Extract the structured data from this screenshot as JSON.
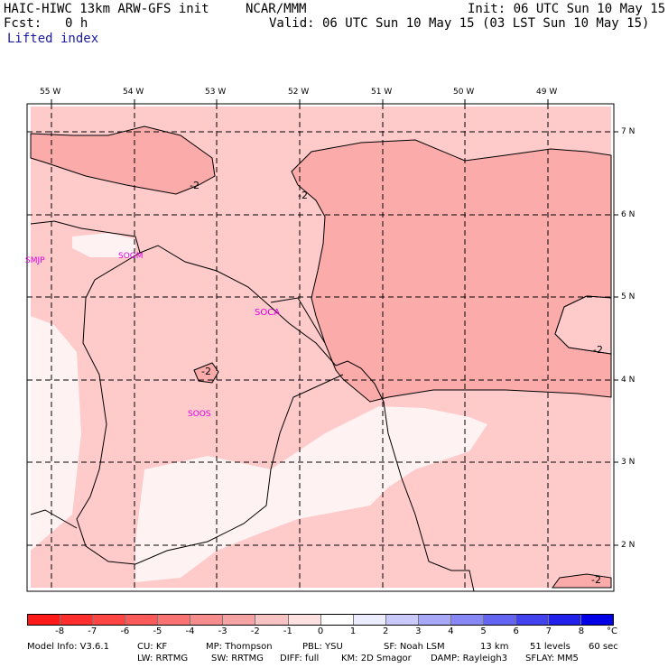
{
  "header": {
    "model": "HAIC-HIWC 13km ARW-GFS init",
    "org": "NCAR/MMM",
    "init": "Init: 06 UTC Sun 10 May 15",
    "fcst_label": "Fcst:",
    "fcst_value": "0 h",
    "valid": "Valid: 06 UTC Sun 10 May 15 (03 LST Sun 10 May 15)",
    "field": "Lifted index"
  },
  "map": {
    "lon_labels": [
      "55 W",
      "54 W",
      "53 W",
      "52 W",
      "51 W",
      "50 W",
      "49 W"
    ],
    "lat_labels": [
      "7 N",
      "6 N",
      "5 N",
      "4 N",
      "3 N",
      "2 N"
    ],
    "stations": [
      "SMJP",
      "SOGM",
      "SOCA",
      "SOOS"
    ],
    "contour_label": "-2",
    "colors": {
      "fill_light": "#fecaca",
      "fill_mid": "#fcabab",
      "fill_pale": "#fff0f0",
      "station": "#e000e0"
    }
  },
  "colorbar": {
    "ticks": [
      "-8",
      "-7",
      "-6",
      "-5",
      "-4",
      "-3",
      "-2",
      "-1",
      "0",
      "1",
      "2",
      "3",
      "4",
      "5",
      "6",
      "7",
      "8"
    ],
    "unit": "°C",
    "colors": [
      "#ff1a1a",
      "#ff2e2e",
      "#ff4444",
      "#fb5a5a",
      "#f97373",
      "#f78c8c",
      "#f5a3a3",
      "#f7c3c3",
      "#fde0e0",
      "#ffffff",
      "#ececff",
      "#c9c9fb",
      "#a8a8f8",
      "#8787f5",
      "#6464f2",
      "#4242ef",
      "#2121eb",
      "#0000e6"
    ]
  },
  "footer": {
    "line1": [
      "Model Info: V3.6.1",
      "CU: KF",
      "MP: Thompson",
      "PBL: YSU",
      "SF: Noah LSM",
      "13 km",
      "51 levels",
      "60 sec"
    ],
    "line2": [
      "LW: RRTMG",
      "SW: RRTMG",
      "DIFF: full",
      "KM: 2D Smagor",
      "DAMP: Rayleigh3",
      "SFLAY: MM5"
    ]
  }
}
